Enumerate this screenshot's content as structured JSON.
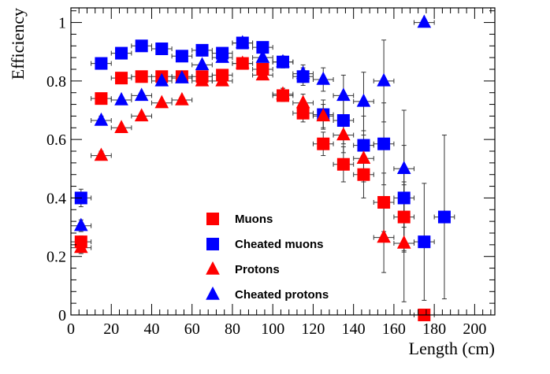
{
  "chart_data": {
    "type": "scatter",
    "xlabel": "Length (cm)",
    "ylabel": "Efficiency",
    "xlim": [
      0,
      210
    ],
    "ylim": [
      0,
      1.05
    ],
    "x_ticks": [
      0,
      20,
      40,
      60,
      80,
      100,
      120,
      140,
      160,
      180,
      200
    ],
    "y_ticks": [
      0,
      0.2,
      0.4,
      0.6,
      0.8,
      1
    ],
    "y_tick_labels": [
      "0",
      "0.2",
      "0.4",
      "0.6",
      "0.8",
      "1"
    ],
    "x_error": 5,
    "grid": false,
    "legend_position": "bottom-center",
    "series": [
      {
        "name": "Muons",
        "marker": "square",
        "color": "#ff0000",
        "points": [
          {
            "x": 5,
            "y": 0.25,
            "err": 0.02
          },
          {
            "x": 15,
            "y": 0.74,
            "err": 0.015
          },
          {
            "x": 25,
            "y": 0.81,
            "err": 0.01
          },
          {
            "x": 35,
            "y": 0.815,
            "err": 0.01
          },
          {
            "x": 45,
            "y": 0.815,
            "err": 0.01
          },
          {
            "x": 55,
            "y": 0.815,
            "err": 0.01
          },
          {
            "x": 65,
            "y": 0.815,
            "err": 0.01
          },
          {
            "x": 75,
            "y": 0.82,
            "err": 0.01
          },
          {
            "x": 85,
            "y": 0.86,
            "err": 0.01
          },
          {
            "x": 95,
            "y": 0.84,
            "err": 0.015
          },
          {
            "x": 105,
            "y": 0.75,
            "err": 0.02
          },
          {
            "x": 115,
            "y": 0.69,
            "err": 0.03
          },
          {
            "x": 125,
            "y": 0.585,
            "err": 0.04
          },
          {
            "x": 135,
            "y": 0.515,
            "err": 0.06
          },
          {
            "x": 145,
            "y": 0.48,
            "err": 0.08
          },
          {
            "x": 155,
            "y": 0.385,
            "err": 0.1
          },
          {
            "x": 165,
            "y": 0.335,
            "err": 0.12
          },
          {
            "x": 175,
            "y": 0.0,
            "err": 0.0
          }
        ]
      },
      {
        "name": "Cheated muons",
        "marker": "square",
        "color": "#0000ff",
        "points": [
          {
            "x": 5,
            "y": 0.4,
            "err": 0.03
          },
          {
            "x": 15,
            "y": 0.86,
            "err": 0.015
          },
          {
            "x": 25,
            "y": 0.895,
            "err": 0.01
          },
          {
            "x": 35,
            "y": 0.92,
            "err": 0.01
          },
          {
            "x": 45,
            "y": 0.91,
            "err": 0.01
          },
          {
            "x": 55,
            "y": 0.885,
            "err": 0.01
          },
          {
            "x": 65,
            "y": 0.905,
            "err": 0.01
          },
          {
            "x": 75,
            "y": 0.895,
            "err": 0.01
          },
          {
            "x": 85,
            "y": 0.93,
            "err": 0.01
          },
          {
            "x": 95,
            "y": 0.915,
            "err": 0.015
          },
          {
            "x": 105,
            "y": 0.865,
            "err": 0.02
          },
          {
            "x": 115,
            "y": 0.815,
            "err": 0.03
          },
          {
            "x": 125,
            "y": 0.685,
            "err": 0.05
          },
          {
            "x": 135,
            "y": 0.665,
            "err": 0.08
          },
          {
            "x": 145,
            "y": 0.58,
            "err": 0.1
          },
          {
            "x": 155,
            "y": 0.585,
            "err": 0.14
          },
          {
            "x": 165,
            "y": 0.4,
            "err": 0.18
          },
          {
            "x": 175,
            "y": 0.25,
            "err": 0.2
          },
          {
            "x": 185,
            "y": 0.335,
            "err": 0.28
          }
        ]
      },
      {
        "name": "Protons",
        "marker": "triangle",
        "color": "#ff0000",
        "points": [
          {
            "x": 5,
            "y": 0.23,
            "err": 0.02
          },
          {
            "x": 15,
            "y": 0.545,
            "err": 0.015
          },
          {
            "x": 25,
            "y": 0.64,
            "err": 0.01
          },
          {
            "x": 35,
            "y": 0.68,
            "err": 0.01
          },
          {
            "x": 45,
            "y": 0.725,
            "err": 0.01
          },
          {
            "x": 55,
            "y": 0.735,
            "err": 0.01
          },
          {
            "x": 65,
            "y": 0.8,
            "err": 0.01
          },
          {
            "x": 75,
            "y": 0.8,
            "err": 0.01
          },
          {
            "x": 85,
            "y": 0.86,
            "err": 0.01
          },
          {
            "x": 95,
            "y": 0.82,
            "err": 0.015
          },
          {
            "x": 105,
            "y": 0.755,
            "err": 0.02
          },
          {
            "x": 115,
            "y": 0.725,
            "err": 0.03
          },
          {
            "x": 125,
            "y": 0.68,
            "err": 0.04
          },
          {
            "x": 135,
            "y": 0.615,
            "err": 0.06
          },
          {
            "x": 145,
            "y": 0.535,
            "err": 0.08
          },
          {
            "x": 155,
            "y": 0.265,
            "err": 0.12
          },
          {
            "x": 165,
            "y": 0.245,
            "err": 0.2
          }
        ]
      },
      {
        "name": "Cheated protons",
        "marker": "triangle",
        "color": "#0000ff",
        "points": [
          {
            "x": 5,
            "y": 0.305,
            "err": 0.02
          },
          {
            "x": 15,
            "y": 0.665,
            "err": 0.015
          },
          {
            "x": 25,
            "y": 0.735,
            "err": 0.01
          },
          {
            "x": 35,
            "y": 0.75,
            "err": 0.01
          },
          {
            "x": 45,
            "y": 0.8,
            "err": 0.01
          },
          {
            "x": 55,
            "y": 0.81,
            "err": 0.01
          },
          {
            "x": 65,
            "y": 0.855,
            "err": 0.01
          },
          {
            "x": 75,
            "y": 0.88,
            "err": 0.01
          },
          {
            "x": 85,
            "y": 0.93,
            "err": 0.01
          },
          {
            "x": 95,
            "y": 0.88,
            "err": 0.015
          },
          {
            "x": 105,
            "y": 0.865,
            "err": 0.02
          },
          {
            "x": 115,
            "y": 0.825,
            "err": 0.03
          },
          {
            "x": 125,
            "y": 0.805,
            "err": 0.04
          },
          {
            "x": 135,
            "y": 0.75,
            "err": 0.07
          },
          {
            "x": 145,
            "y": 0.73,
            "err": 0.1
          },
          {
            "x": 155,
            "y": 0.8,
            "err": 0.14
          },
          {
            "x": 165,
            "y": 0.5,
            "err": 0.2
          },
          {
            "x": 175,
            "y": 1.0,
            "err": 0.0
          }
        ]
      }
    ]
  }
}
